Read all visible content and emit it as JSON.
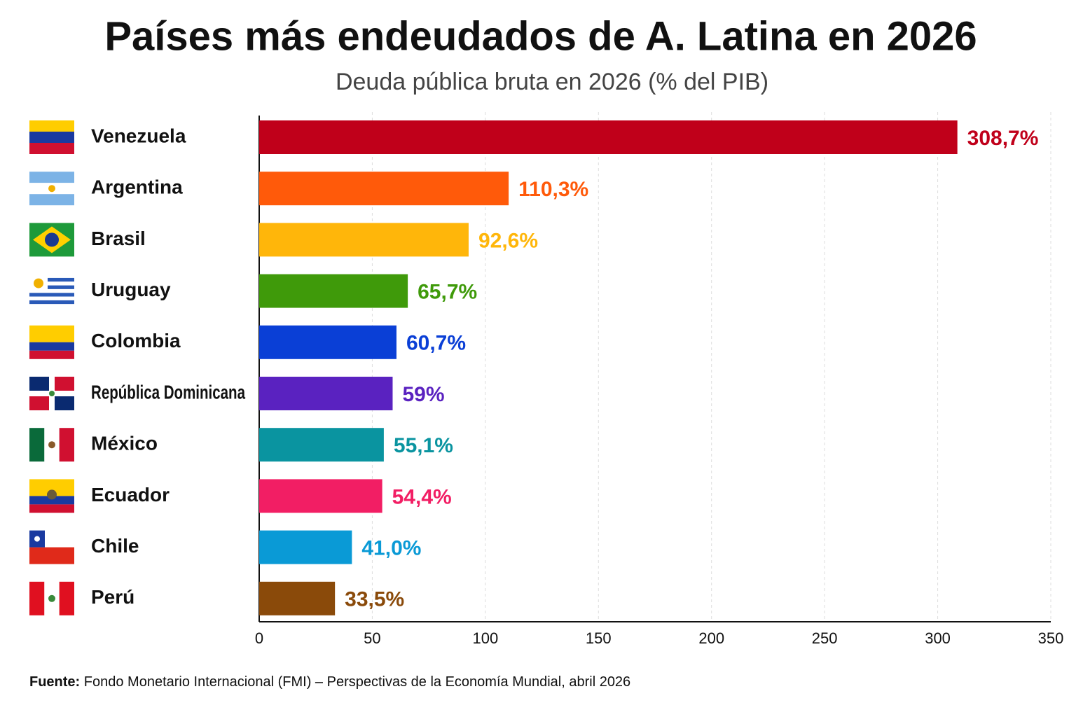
{
  "chart_data": {
    "type": "bar",
    "orientation": "horizontal",
    "title": "Países más endeudados de A. Latina en 2026",
    "subtitle": "Deuda pública bruta en 2026 (% del PIB)",
    "categories": [
      "Venezuela",
      "Argentina",
      "Brasil",
      "Uruguay",
      "Colombia",
      "República Dominicana",
      "México",
      "Ecuador",
      "Chile",
      "Perú"
    ],
    "values": [
      308.7,
      110.3,
      92.6,
      65.7,
      60.7,
      59,
      55.1,
      54.4,
      41.0,
      33.5
    ],
    "value_labels": [
      "308,7%",
      "110,3%",
      "92,6%",
      "65,7%",
      "60,7%",
      "59%",
      "55,1%",
      "54,4%",
      "41,0%",
      "33,5%"
    ],
    "colors": [
      "#c0001a",
      "#ff5a0a",
      "#ffb60a",
      "#3f9a0a",
      "#0a3fd6",
      "#5a22c0",
      "#0a94a0",
      "#f21e64",
      "#0a9ad6",
      "#8a4a0a"
    ],
    "xlim": [
      0,
      350
    ],
    "xticks": [
      0,
      50,
      100,
      150,
      200,
      250,
      300,
      350
    ],
    "grid": true,
    "source_label": "Fuente:",
    "source": "Fondo Monetario Internacional (FMI) – Perspectivas de la Economía Mundial, abril 2026"
  }
}
